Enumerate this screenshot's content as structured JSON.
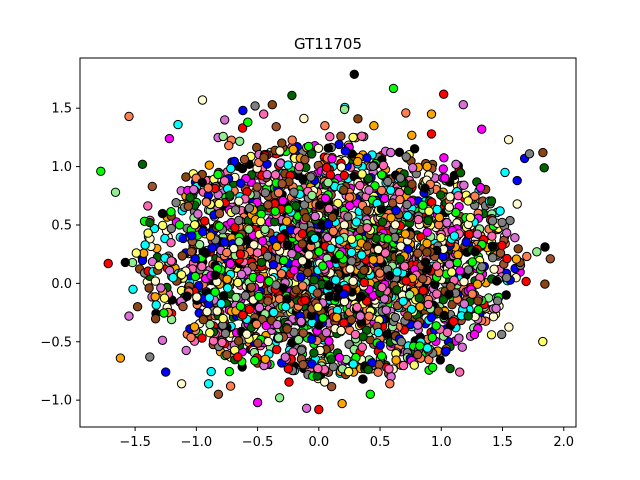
{
  "chart_data": {
    "type": "scatter",
    "title": "GT11705",
    "xlabel": "",
    "ylabel": "",
    "xlim": [
      -1.95,
      2.1
    ],
    "ylim": [
      -1.23,
      1.93
    ],
    "x_ticks": [
      -1.5,
      -1.0,
      -0.5,
      0.0,
      0.5,
      1.0,
      1.5,
      2.0
    ],
    "x_tick_labels": [
      "−1.5",
      "−1.0",
      "−0.5",
      "0.0",
      "0.5",
      "1.0",
      "1.5",
      "2.0"
    ],
    "y_ticks": [
      -1.0,
      -0.5,
      0.0,
      0.5,
      1.0,
      1.5
    ],
    "y_tick_labels": [
      "−1.0",
      "−0.5",
      "0.0",
      "0.5",
      "1.0",
      "1.5"
    ],
    "grid": false,
    "legend": "none",
    "marker": {
      "shape": "circle",
      "edgecolor": "#000000"
    },
    "point_colors": [
      "#00ff00",
      "#ff00ff",
      "#8b4513",
      "#ffff66",
      "#ff0000",
      "#0000ff",
      "#90ee90",
      "#ff7f50",
      "#00ffff",
      "#006400",
      "#ff69b4",
      "#da70d6",
      "#808080",
      "#000000",
      "#ffa500",
      "#fffacd",
      "#a0522d"
    ],
    "cloud": {
      "center": [
        0.1,
        0.2
      ],
      "x_extent": [
        -1.8,
        1.9
      ],
      "y_extent": [
        -1.1,
        1.8
      ],
      "approx_points": 3000
    },
    "series": [
      {
        "points": [
          [
            -1.78,
            0.96
          ],
          [
            -1.55,
            1.43
          ],
          [
            -1.62,
            -0.64
          ],
          [
            -1.72,
            0.17
          ],
          [
            -1.55,
            -0.28
          ],
          [
            -1.22,
            1.24
          ],
          [
            -1.15,
            1.36
          ],
          [
            -0.95,
            1.57
          ],
          [
            -0.62,
            1.48
          ],
          [
            -0.52,
            1.52
          ],
          [
            -0.38,
            1.53
          ],
          [
            -0.22,
            1.61
          ],
          [
            0.18,
            1.26
          ],
          [
            0.21,
            1.49
          ],
          [
            0.29,
            1.79
          ],
          [
            0.28,
            1.25
          ],
          [
            0.35,
            1.26
          ],
          [
            0.61,
            1.67
          ],
          [
            0.71,
            1.46
          ],
          [
            0.92,
            1.45
          ],
          [
            1.02,
            1.62
          ],
          [
            1.18,
            1.53
          ],
          [
            1.33,
            1.32
          ],
          [
            1.52,
            0.95
          ],
          [
            1.55,
            1.23
          ],
          [
            1.68,
            1.07
          ],
          [
            1.72,
            1.11
          ],
          [
            1.83,
            1.12
          ],
          [
            1.84,
            0.99
          ],
          [
            1.89,
            0.21
          ],
          [
            1.78,
            0.27
          ],
          [
            1.53,
            -0.1
          ],
          [
            1.41,
            -0.44
          ],
          [
            1.15,
            -0.76
          ],
          [
            0.93,
            -0.72
          ],
          [
            0.58,
            -0.86
          ],
          [
            0.19,
            -1.03
          ],
          [
            0.0,
            -1.08
          ],
          [
            -0.1,
            -1.07
          ],
          [
            -0.5,
            -1.02
          ],
          [
            -0.9,
            -0.86
          ],
          [
            -1.12,
            -0.86
          ],
          [
            -1.25,
            -0.76
          ],
          [
            -1.38,
            -0.63
          ],
          [
            -1.48,
            -0.2
          ],
          [
            -1.38,
            0.52
          ],
          [
            -1.36,
            0.83
          ],
          [
            -1.66,
            0.78
          ],
          [
            -1.58,
            0.18
          ],
          [
            -1.49,
            0.26
          ],
          [
            -0.45,
            1.45
          ],
          [
            -0.58,
            1.38
          ],
          [
            0.05,
            1.35
          ],
          [
            0.45,
            1.35
          ],
          [
            0.92,
            1.28
          ],
          [
            1.12,
            1.02
          ],
          [
            1.32,
            0.82
          ],
          [
            1.48,
            0.62
          ],
          [
            1.62,
            0.68
          ],
          [
            1.62,
            0.88
          ],
          [
            1.42,
            0.22
          ],
          [
            1.3,
            -0.15
          ],
          [
            1.22,
            -0.28
          ],
          [
            -0.82,
            -0.95
          ],
          [
            -0.32,
            -0.98
          ],
          [
            0.36,
            -0.82
          ],
          [
            0.78,
            -0.7
          ],
          [
            1.05,
            -0.42
          ],
          [
            0.42,
            -0.95
          ],
          [
            -0.72,
            -0.88
          ]
        ]
      }
    ]
  }
}
